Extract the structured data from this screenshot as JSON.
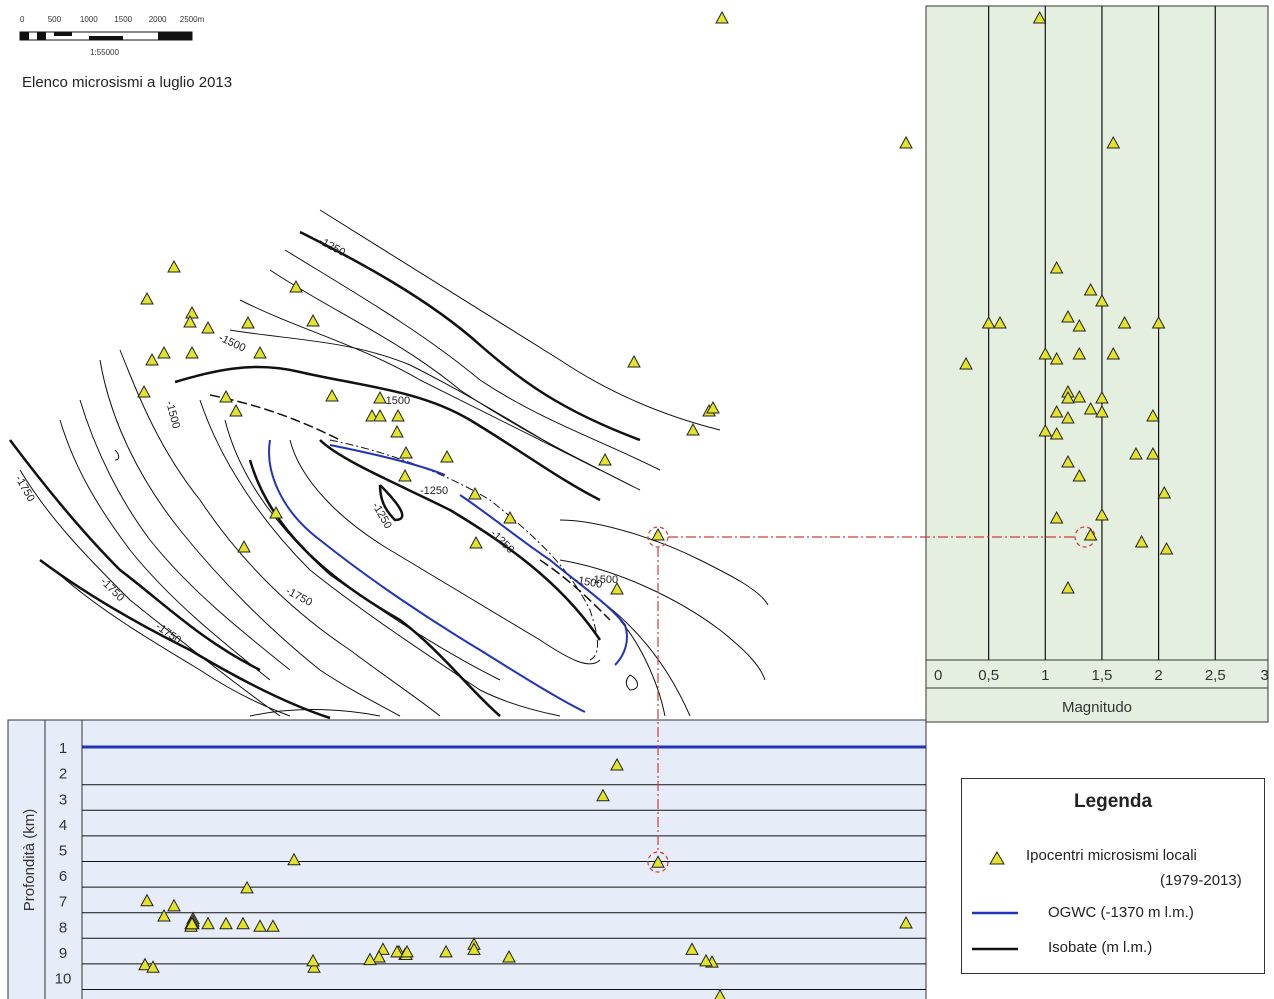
{
  "map": {
    "title": "Elenco microsismi a luglio 2013",
    "scale": {
      "tick_labels": [
        "0",
        "500",
        "1000",
        "1500",
        "2000",
        "2500m"
      ],
      "ratio": "1:55000"
    },
    "contour_labels": [
      "-1250",
      "-1500",
      "-1500",
      "-1750",
      "-1750",
      "-1750",
      "-1750",
      "-1500",
      "-1250",
      "-1250",
      "-1250",
      "-1500",
      "-1500"
    ],
    "colors": {
      "isobate": "#111111",
      "ogwc": "#2233bb",
      "marker_fill": "#e3e32a",
      "highlight": "#d23a3a"
    }
  },
  "magnitude_panel": {
    "xlabel": "Magnitudo",
    "tick_labels": [
      "0",
      "0,5",
      "1",
      "1,5",
      "2",
      "2,5",
      "3"
    ],
    "background": "#e4efdf"
  },
  "depth_panel": {
    "ylabel": "Profondità (km)",
    "tick_labels": [
      "1",
      "2",
      "3",
      "4",
      "5",
      "6",
      "7",
      "8",
      "9",
      "10"
    ],
    "background": "#e6ecf8"
  },
  "legend": {
    "title": "Legenda",
    "items": [
      {
        "label": "Ipocentri microsismi locali",
        "sublabel": "(1979-2013)",
        "icon": "triangle-marker-icon"
      },
      {
        "label": "OGWC (-1370 m l.m.)",
        "icon": "blue-line-icon"
      },
      {
        "label": "Isobate (m l.m.)",
        "icon": "black-line-icon"
      }
    ]
  },
  "chart_data": [
    {
      "type": "scatter",
      "xlabel": "Magnitudo",
      "xlim": [
        0,
        3
      ],
      "x": [
        0.95,
        1.6,
        1.1,
        1.4,
        1.5,
        0.5,
        0.6,
        1.2,
        1.3,
        1.7,
        2.0,
        1.0,
        1.1,
        1.3,
        1.6,
        0.3,
        1.2,
        1.3,
        1.2,
        1.5,
        1.1,
        1.2,
        1.4,
        1.5,
        1.95,
        1.0,
        1.1,
        1.8,
        1.95,
        1.2,
        1.3,
        2.05,
        1.1,
        1.5,
        1.4,
        1.85,
        2.07,
        1.2
      ]
    },
    {
      "type": "scatter",
      "ylabel": "Profondità (km)",
      "ylim": [
        0,
        10
      ],
      "y": [
        1.7,
        2.9,
        5.4,
        5.5,
        6.5,
        7.0,
        7.2,
        7.6,
        7.7,
        7.8,
        7.9,
        7.9,
        7.9,
        7.9,
        8.0,
        8.0,
        8.0,
        7.9,
        7.9,
        8.7,
        8.9,
        8.9,
        8.9,
        9.0,
        9.0,
        9.1,
        9.1,
        9.2,
        9.2,
        9.0,
        9.0,
        9.3,
        9.4,
        9.5,
        9.6,
        9.6,
        9.35,
        9.35
      ]
    }
  ]
}
